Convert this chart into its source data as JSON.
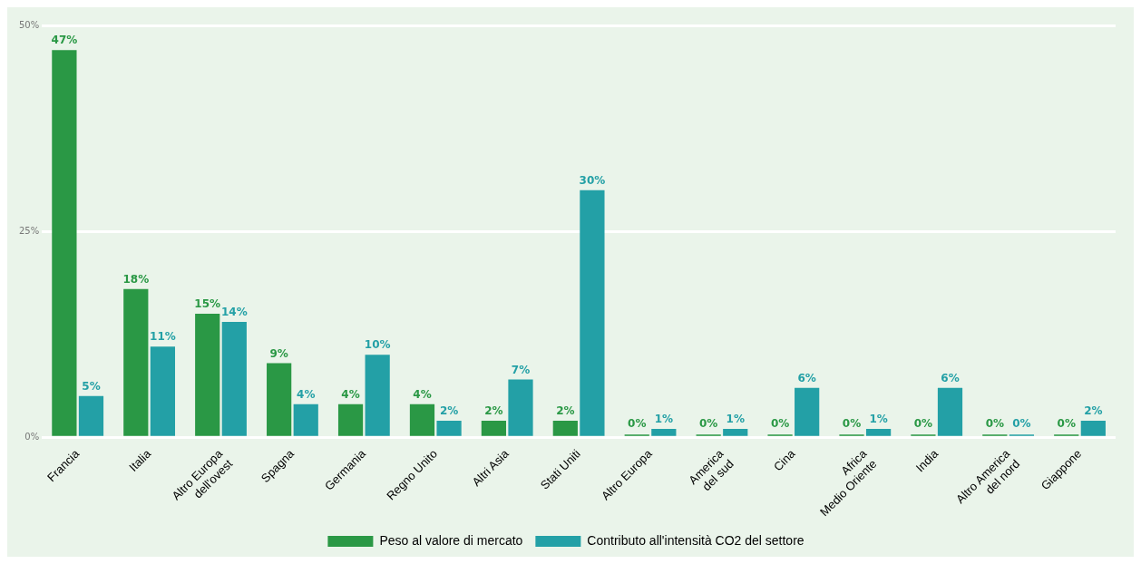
{
  "chart_data": {
    "type": "bar",
    "categories": [
      "Francia",
      "Italia",
      "Altro Europa\ndell'ovest",
      "Spagna",
      "Germania",
      "Regno Unito",
      "Altri Asia",
      "Stati Uniti",
      "Altro Europa",
      "America\ndel sud",
      "Cina",
      "Africa\nMedio Oriente",
      "India",
      "Altro America\ndel nord",
      "Giappone"
    ],
    "series": [
      {
        "name": "Peso al valore di mercato",
        "color": "#2a9845",
        "values": [
          47,
          18,
          15,
          9,
          4,
          4,
          2,
          2,
          0,
          0,
          0,
          0,
          0,
          0,
          0
        ],
        "value_labels": [
          "47%",
          "18%",
          "15%",
          "9%",
          "4%",
          "4%",
          "2%",
          "2%",
          "0%",
          "0%",
          "0%",
          "0%",
          "0%",
          "0%",
          "0%"
        ]
      },
      {
        "name": "Contributo all'intensità CO2 del settore",
        "color": "#23a0a6",
        "values": [
          5,
          11,
          14,
          4,
          10,
          2,
          7,
          30,
          1,
          1,
          6,
          1,
          6,
          0,
          2
        ],
        "value_labels": [
          "5%",
          "11%",
          "14%",
          "4%",
          "10%",
          "2%",
          "7%",
          "30%",
          "1%",
          "1%",
          "6%",
          "1%",
          "6%",
          "0%",
          "2%"
        ]
      }
    ],
    "ylim": [
      0,
      50
    ],
    "yticks": [
      {
        "value": 0,
        "label": "0%"
      },
      {
        "value": 25,
        "label": "25%"
      },
      {
        "value": 50,
        "label": "50%"
      }
    ],
    "grid": "y",
    "legend": "bottom"
  }
}
